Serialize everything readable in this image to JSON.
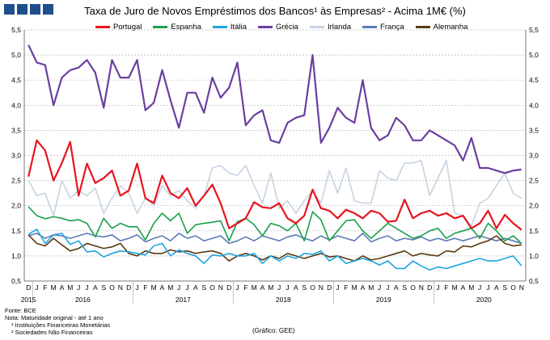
{
  "title": "Taxa de Juro de Novos Empréstimos dos Bancos¹ às Empresas² - Acima 1M€ (%)",
  "notes": {
    "source": "Fonte: BCE",
    "note": "Nota: Maturidade original - até 1 ano",
    "footnote1": "¹ Instituições Financeiras Monetárias",
    "footnote2": "² Sociedades Não Financeiras",
    "credit": "(Gráfico: GEE)"
  },
  "colors": {
    "Portugal": "#e8141e",
    "Espanha": "#1aa04a",
    "Itália": "#1ea5e0",
    "Grécia": "#6b3fa0",
    "Irlanda": "#c7d3e3",
    "França": "#5b7bb5",
    "Alemanha": "#5a3a12"
  },
  "chart_data": {
    "type": "line",
    "title": "Taxa de Juro de Novos Empréstimos dos Bancos¹ às Empresas² - Acima 1M€ (%)",
    "ylim": [
      0.5,
      5.5
    ],
    "yticks": [
      "0,5",
      "1,0",
      "1,5",
      "2,0",
      "2,5",
      "3,0",
      "3,5",
      "4,0",
      "4,5",
      "5,0",
      "5,5"
    ],
    "grid": true,
    "legend_position": "top",
    "month_labels": [
      "D",
      "J",
      "F",
      "M",
      "A",
      "M",
      "J",
      "J",
      "A",
      "S",
      "O",
      "N",
      "D",
      "J",
      "F",
      "M",
      "A",
      "M",
      "J",
      "J",
      "A",
      "S",
      "O",
      "N",
      "D",
      "J",
      "F",
      "M",
      "A",
      "M",
      "J",
      "J",
      "A",
      "S",
      "O",
      "N",
      "D",
      "J",
      "F",
      "M",
      "A",
      "M",
      "J",
      "J",
      "A",
      "S",
      "O",
      "N",
      "D",
      "J",
      "F",
      "M",
      "A",
      "M",
      "J",
      "J",
      "A",
      "S",
      "O",
      "N"
    ],
    "year_labels": [
      {
        "label": "2015",
        "index": 0
      },
      {
        "label": "2016",
        "index": 6.5
      },
      {
        "label": "2017",
        "index": 18.5
      },
      {
        "label": "2018",
        "index": 30.5
      },
      {
        "label": "2019",
        "index": 42.5
      },
      {
        "label": "2020",
        "index": 54.5
      }
    ],
    "series": [
      {
        "name": "Portugal",
        "values": [
          2.58,
          3.3,
          3.1,
          2.5,
          2.85,
          3.27,
          2.2,
          2.84,
          2.45,
          2.55,
          2.7,
          2.2,
          2.3,
          2.84,
          2.15,
          2.05,
          2.6,
          2.25,
          2.15,
          2.35,
          2.0,
          2.2,
          2.42,
          2.05,
          1.55,
          1.65,
          1.75,
          2.07,
          1.97,
          1.95,
          2.05,
          1.75,
          1.65,
          1.8,
          2.32,
          1.95,
          1.9,
          1.75,
          1.92,
          1.85,
          1.75,
          1.9,
          1.85,
          1.68,
          1.7,
          2.12,
          1.75,
          1.85,
          1.9,
          1.8,
          1.85,
          1.75,
          1.8,
          1.55,
          1.65,
          1.9,
          1.55,
          1.82,
          1.65,
          1.52
        ]
      },
      {
        "name": "Espanha",
        "values": [
          1.98,
          1.8,
          1.74,
          1.78,
          1.75,
          1.7,
          1.72,
          1.65,
          1.38,
          1.75,
          1.55,
          1.65,
          1.58,
          1.58,
          1.32,
          1.65,
          1.85,
          1.7,
          1.85,
          1.45,
          1.62,
          1.65,
          1.67,
          1.7,
          1.3,
          1.68,
          1.75,
          1.62,
          1.4,
          1.65,
          1.6,
          1.5,
          1.65,
          1.3,
          1.88,
          1.72,
          1.3,
          1.5,
          1.7,
          1.72,
          1.5,
          1.35,
          1.5,
          1.65,
          1.55,
          1.45,
          1.35,
          1.4,
          1.5,
          1.55,
          1.35,
          1.45,
          1.5,
          1.55,
          1.35,
          1.65,
          1.5,
          1.3,
          1.4,
          1.25
        ]
      },
      {
        "name": "Itália",
        "values": [
          1.43,
          1.53,
          1.25,
          1.42,
          1.45,
          1.23,
          1.3,
          1.08,
          1.1,
          0.98,
          1.05,
          1.1,
          1.08,
          1.05,
          1.02,
          1.2,
          1.25,
          1.0,
          1.12,
          1.05,
          1.0,
          0.85,
          1.02,
          1.0,
          1.05,
          1.0,
          1.0,
          1.05,
          0.85,
          1.0,
          0.9,
          1.0,
          0.95,
          1.05,
          1.03,
          1.1,
          0.9,
          1.0,
          0.85,
          0.9,
          0.95,
          0.9,
          0.82,
          0.9,
          0.75,
          0.75,
          0.9,
          0.8,
          0.72,
          0.78,
          0.75,
          0.8,
          0.85,
          0.9,
          0.95,
          0.9,
          0.9,
          0.95,
          1.0,
          0.8
        ]
      },
      {
        "name": "Grécia",
        "values": [
          5.2,
          4.85,
          4.8,
          4.0,
          4.55,
          4.7,
          4.75,
          4.9,
          4.65,
          3.95,
          4.9,
          4.55,
          4.55,
          4.9,
          3.9,
          4.05,
          4.7,
          4.1,
          3.55,
          4.25,
          4.25,
          3.85,
          4.55,
          4.15,
          4.35,
          4.85,
          3.6,
          3.8,
          3.9,
          3.3,
          3.25,
          3.65,
          3.75,
          3.8,
          5.0,
          3.25,
          3.55,
          3.95,
          3.75,
          3.65,
          4.5,
          3.55,
          3.3,
          3.4,
          3.75,
          3.6,
          3.3,
          3.3,
          3.5,
          3.4,
          3.3,
          3.2,
          2.9,
          3.35,
          2.75,
          2.75,
          2.7,
          2.65,
          2.7,
          2.72
        ]
      },
      {
        "name": "Irlanda",
        "values": [
          2.5,
          2.2,
          2.25,
          1.8,
          2.5,
          2.15,
          2.3,
          2.2,
          2.35,
          1.85,
          2.15,
          2.4,
          2.25,
          1.85,
          2.15,
          2.0,
          2.4,
          2.2,
          2.3,
          2.1,
          1.95,
          2.2,
          2.75,
          2.8,
          2.65,
          2.6,
          2.8,
          2.4,
          2.05,
          2.65,
          1.95,
          2.1,
          1.85,
          2.1,
          2.3,
          2.05,
          2.7,
          2.25,
          2.75,
          2.1,
          2.05,
          2.05,
          2.7,
          2.55,
          2.5,
          2.85,
          2.85,
          2.9,
          2.2,
          2.55,
          2.9,
          1.85,
          1.8,
          1.6,
          2.05,
          2.15,
          2.4,
          2.65,
          2.25,
          2.15
        ]
      },
      {
        "name": "França",
        "values": [
          1.4,
          1.45,
          1.35,
          1.42,
          1.4,
          1.35,
          1.4,
          1.45,
          1.4,
          1.38,
          1.42,
          1.3,
          1.35,
          1.42,
          1.28,
          1.35,
          1.4,
          1.3,
          1.45,
          1.35,
          1.4,
          1.3,
          1.35,
          1.4,
          1.25,
          1.3,
          1.38,
          1.3,
          1.4,
          1.35,
          1.3,
          1.38,
          1.42,
          1.35,
          1.3,
          1.4,
          1.32,
          1.4,
          1.35,
          1.3,
          1.45,
          1.28,
          1.35,
          1.4,
          1.3,
          1.35,
          1.32,
          1.38,
          1.3,
          1.35,
          1.3,
          1.35,
          1.3,
          1.35,
          1.4,
          1.35,
          1.3,
          1.35,
          1.3,
          1.25
        ]
      },
      {
        "name": "Alemanha",
        "values": [
          1.42,
          1.25,
          1.2,
          1.35,
          1.22,
          1.1,
          1.15,
          1.25,
          1.2,
          1.15,
          1.18,
          1.25,
          1.05,
          1.0,
          1.1,
          1.05,
          1.05,
          1.12,
          1.08,
          1.1,
          1.05,
          1.08,
          1.1,
          1.05,
          0.9,
          1.0,
          1.05,
          1.0,
          0.92,
          1.0,
          0.95,
          1.05,
          1.0,
          0.95,
          1.0,
          1.05,
          0.98,
          1.0,
          0.95,
          0.9,
          1.0,
          0.92,
          0.95,
          1.0,
          1.05,
          1.1,
          1.0,
          1.05,
          1.02,
          1.0,
          1.1,
          1.08,
          1.2,
          1.18,
          1.25,
          1.3,
          1.4,
          1.25,
          1.2,
          1.22
        ]
      }
    ]
  }
}
